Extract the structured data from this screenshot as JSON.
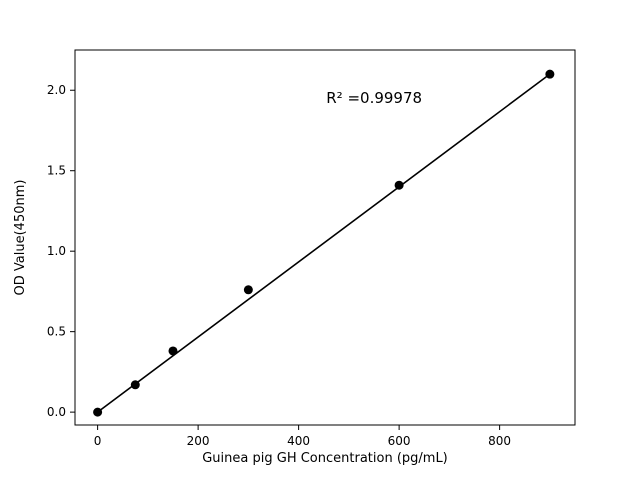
{
  "chart_data": {
    "type": "scatter",
    "title": "",
    "xlabel": "Guinea pig GH Concentration (pg/mL)",
    "ylabel": "OD Value(450nm)",
    "x": [
      0,
      75,
      150,
      300,
      600,
      900
    ],
    "y": [
      0.0,
      0.17,
      0.38,
      0.76,
      1.41,
      2.1
    ],
    "fit_line": {
      "x1": 0,
      "y1": 0.0,
      "x2": 900,
      "y2": 2.1
    },
    "annotation": {
      "text": "R² =0.99978",
      "x": 455,
      "y": 1.92
    },
    "xlim": [
      -45,
      950
    ],
    "ylim": [
      -0.08,
      2.25
    ],
    "xticks": [
      0,
      200,
      400,
      600,
      800
    ],
    "yticks": [
      0.0,
      0.5,
      1.0,
      1.5,
      2.0
    ],
    "grid": false,
    "legend": null,
    "background_color": "#ffffff",
    "axis_color": "#000000",
    "line_color": "#000000",
    "marker_color": "#000000"
  }
}
